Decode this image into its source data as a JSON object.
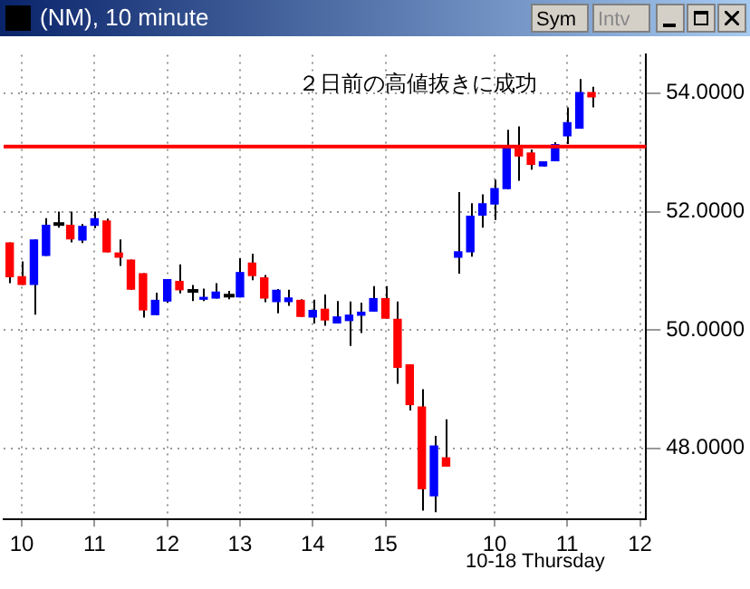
{
  "chart_data": {
    "type": "candlestick",
    "title": "(NM), 10 minute",
    "categories": [
      null,
      "10",
      null,
      null,
      null,
      null,
      null,
      "11",
      null,
      null,
      null,
      null,
      null,
      "12",
      null,
      null,
      null,
      null,
      null,
      "13",
      null,
      null,
      null,
      null,
      null,
      "14",
      null,
      null,
      null,
      null,
      null,
      "15",
      null,
      null,
      null,
      null,
      null,
      null,
      null,
      null,
      "10",
      null,
      null,
      null,
      null,
      null,
      "11",
      null,
      null,
      null,
      null,
      null,
      "12"
    ],
    "ohlc": [
      [
        51.48,
        51.48,
        50.79,
        50.89
      ],
      [
        50.91,
        51.16,
        50.76,
        50.76
      ],
      [
        50.76,
        51.53,
        50.26,
        51.53
      ],
      [
        51.25,
        51.89,
        51.25,
        51.78
      ],
      [
        51.79,
        52.0,
        51.73,
        51.79
      ],
      [
        51.78,
        52.0,
        51.48,
        51.53
      ],
      [
        51.51,
        51.79,
        51.47,
        51.76
      ],
      [
        51.76,
        52.0,
        51.72,
        51.89
      ],
      [
        51.85,
        51.88,
        51.31,
        51.31
      ],
      [
        51.31,
        51.53,
        51.08,
        51.22
      ],
      [
        51.19,
        51.19,
        50.68,
        50.68
      ],
      [
        50.96,
        50.96,
        50.21,
        50.33
      ],
      [
        50.25,
        50.63,
        50.25,
        50.51
      ],
      [
        50.48,
        50.86,
        50.46,
        50.86
      ],
      [
        50.83,
        51.11,
        50.62,
        50.67
      ],
      [
        50.66,
        50.76,
        50.49,
        50.66
      ],
      [
        50.51,
        50.7,
        50.49,
        50.56
      ],
      [
        50.53,
        50.79,
        50.53,
        50.65
      ],
      [
        50.58,
        50.66,
        50.52,
        50.58
      ],
      [
        50.55,
        51.21,
        50.55,
        50.98
      ],
      [
        51.14,
        51.29,
        50.84,
        50.91
      ],
      [
        50.89,
        50.93,
        50.47,
        50.53
      ],
      [
        50.47,
        50.69,
        50.28,
        50.68
      ],
      [
        50.47,
        50.68,
        50.41,
        50.55
      ],
      [
        50.51,
        50.52,
        50.22,
        50.22
      ],
      [
        50.21,
        50.51,
        50.11,
        50.34
      ],
      [
        50.36,
        50.6,
        50.07,
        50.16
      ],
      [
        50.11,
        50.49,
        50.11,
        50.23
      ],
      [
        50.15,
        50.48,
        49.73,
        50.26
      ],
      [
        50.24,
        50.46,
        49.95,
        50.31
      ],
      [
        50.31,
        50.74,
        50.31,
        50.54
      ],
      [
        50.54,
        50.74,
        50.19,
        50.19
      ],
      [
        50.19,
        50.48,
        49.09,
        49.36
      ],
      [
        49.42,
        49.42,
        48.64,
        48.73
      ],
      [
        48.71,
        49.0,
        46.95,
        47.31
      ],
      [
        47.19,
        48.21,
        46.92,
        48.05
      ],
      [
        47.85,
        48.49,
        47.69,
        47.69
      ],
      [
        51.22,
        52.33,
        50.95,
        51.33
      ],
      [
        51.31,
        52.14,
        51.24,
        51.93
      ],
      [
        51.93,
        52.29,
        51.73,
        52.14
      ],
      [
        52.12,
        52.54,
        51.86,
        52.4
      ],
      [
        52.38,
        53.38,
        52.38,
        53.08
      ],
      [
        53.07,
        53.44,
        52.52,
        52.93
      ],
      [
        53.0,
        53.05,
        52.71,
        52.79
      ],
      [
        52.76,
        52.85,
        52.76,
        52.85
      ],
      [
        52.85,
        53.17,
        52.85,
        53.14
      ],
      [
        53.27,
        53.76,
        53.14,
        53.51
      ],
      [
        53.4,
        54.24,
        53.4,
        54.02
      ],
      [
        54.02,
        54.11,
        53.76,
        53.93
      ],
      null,
      null,
      null,
      null
    ],
    "colors": [
      "#ff0000",
      "#ff0000",
      "#0000ff",
      "#0000ff",
      "#000000",
      "#ff0000",
      "#0000ff",
      "#0000ff",
      "#ff0000",
      "#ff0000",
      "#ff0000",
      "#ff0000",
      "#0000ff",
      "#0000ff",
      "#ff0000",
      "#000000",
      "#0000ff",
      "#0000ff",
      "#000000",
      "#0000ff",
      "#ff0000",
      "#ff0000",
      "#0000ff",
      "#0000ff",
      "#ff0000",
      "#0000ff",
      "#ff0000",
      "#0000ff",
      "#0000ff",
      "#0000ff",
      "#0000ff",
      "#ff0000",
      "#ff0000",
      "#ff0000",
      "#ff0000",
      "#0000ff",
      "#ff0000",
      "#0000ff",
      "#0000ff",
      "#0000ff",
      "#0000ff",
      "#0000ff",
      "#ff0000",
      "#ff0000",
      "#0000ff",
      "#0000ff",
      "#0000ff",
      "#0000ff",
      "#ff0000",
      null,
      null,
      null,
      null
    ],
    "ylim": [
      46.8,
      54.65
    ],
    "yticks": [
      {
        "value": 48,
        "label": "48.0000"
      },
      {
        "value": 50,
        "label": "50.0000"
      },
      {
        "value": 52,
        "label": "52.0000"
      },
      {
        "value": 54,
        "label": "54.0000"
      }
    ],
    "grid": true,
    "legend": false,
    "ref_lines": [
      {
        "axis": "y",
        "value": 53.1,
        "color": "#ff0000"
      }
    ],
    "annotations": [
      "２日前の高値抜きに成功",
      "10-18 Thursday",
      "Sym",
      "Intv"
    ]
  }
}
